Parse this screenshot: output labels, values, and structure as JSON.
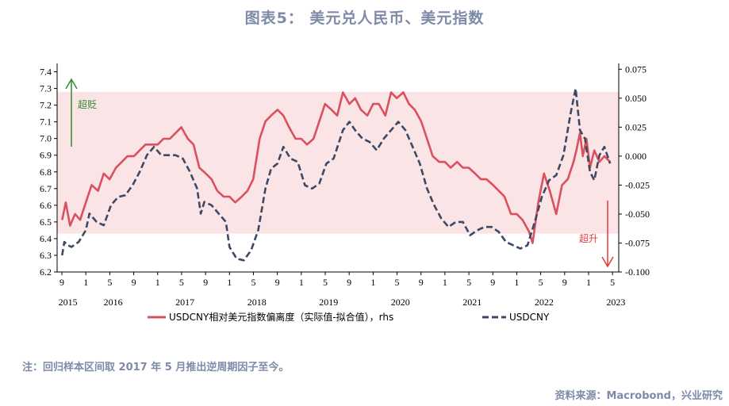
{
  "title": "图表5：  美元兑人民币、美元指数",
  "note": "注：回归样本区间取 2017 年 5 月推出逆周期因子至今。",
  "source": "资料来源：Macrobond，兴业研究",
  "colors": {
    "red": "#d9505f",
    "navy": "#3b4966",
    "band": "#fbe4e6",
    "green": "#2e8b2e",
    "arrow_red": "#e53935"
  },
  "chart_data": {
    "type": "line",
    "annotations": {
      "over_depreciation": "超贬",
      "over_appreciation": "超升"
    },
    "left_axis": {
      "ticks": [
        "6.2",
        "6.3",
        "6.4",
        "6.5",
        "6.6",
        "6.7",
        "6.8",
        "6.9",
        "7.0",
        "7.1",
        "7.2",
        "7.3",
        "7.4"
      ],
      "range": [
        6.2,
        7.45
      ]
    },
    "right_axis": {
      "ticks": [
        "-0.100",
        "-0.075",
        "-0.050",
        "-0.025",
        "0.000",
        "0.025",
        "0.050",
        "0.075"
      ],
      "range": [
        -0.1,
        0.08
      ]
    },
    "band": {
      "y_lo": 6.43,
      "y_hi": 7.28
    },
    "month_ticks": [
      "9",
      "1",
      "5",
      "9",
      "1",
      "5",
      "9",
      "1",
      "5",
      "9",
      "1",
      "5",
      "9",
      "1",
      "5",
      "9",
      "1",
      "5",
      "9",
      "1",
      "5",
      "9",
      "1",
      "5"
    ],
    "years": [
      "2015",
      "2016",
      "2017",
      "2018",
      "2019",
      "2020",
      "2021",
      "2022",
      "2023"
    ],
    "legend": [
      {
        "label": "USDCNY相对美元指数偏离度（实际值-拟合值），rhs",
        "style": "solid",
        "color": "#d9505f"
      },
      {
        "label": "USDCNY",
        "style": "dashed",
        "color": "#3b4966"
      }
    ],
    "series": [
      {
        "name": "USDCNY相对美元指数偏离度（实际值-拟合值），rhs",
        "axis": "right",
        "points": [
          [
            2015.67,
            -0.055
          ],
          [
            2015.72,
            -0.04
          ],
          [
            2015.78,
            -0.06
          ],
          [
            2015.85,
            -0.05
          ],
          [
            2015.92,
            -0.055
          ],
          [
            2016.0,
            -0.04
          ],
          [
            2016.08,
            -0.025
          ],
          [
            2016.17,
            -0.03
          ],
          [
            2016.25,
            -0.015
          ],
          [
            2016.33,
            -0.02
          ],
          [
            2016.42,
            -0.01
          ],
          [
            2016.5,
            -0.005
          ],
          [
            2016.58,
            0.0
          ],
          [
            2016.67,
            0.0
          ],
          [
            2016.75,
            0.005
          ],
          [
            2016.83,
            0.01
          ],
          [
            2016.92,
            0.01
          ],
          [
            2017.0,
            0.01
          ],
          [
            2017.08,
            0.015
          ],
          [
            2017.17,
            0.015
          ],
          [
            2017.25,
            0.02
          ],
          [
            2017.33,
            0.025
          ],
          [
            2017.42,
            0.015
          ],
          [
            2017.5,
            0.01
          ],
          [
            2017.58,
            -0.01
          ],
          [
            2017.67,
            -0.015
          ],
          [
            2017.75,
            -0.02
          ],
          [
            2017.83,
            -0.03
          ],
          [
            2017.92,
            -0.035
          ],
          [
            2018.0,
            -0.035
          ],
          [
            2018.08,
            -0.04
          ],
          [
            2018.17,
            -0.035
          ],
          [
            2018.25,
            -0.03
          ],
          [
            2018.33,
            -0.02
          ],
          [
            2018.42,
            0.015
          ],
          [
            2018.5,
            0.03
          ],
          [
            2018.58,
            0.035
          ],
          [
            2018.67,
            0.04
          ],
          [
            2018.75,
            0.035
          ],
          [
            2018.83,
            0.025
          ],
          [
            2018.92,
            0.015
          ],
          [
            2019.0,
            0.015
          ],
          [
            2019.08,
            0.01
          ],
          [
            2019.17,
            0.015
          ],
          [
            2019.25,
            0.03
          ],
          [
            2019.33,
            0.045
          ],
          [
            2019.42,
            0.04
          ],
          [
            2019.5,
            0.035
          ],
          [
            2019.58,
            0.055
          ],
          [
            2019.67,
            0.045
          ],
          [
            2019.75,
            0.05
          ],
          [
            2019.83,
            0.04
          ],
          [
            2019.92,
            0.035
          ],
          [
            2020.0,
            0.045
          ],
          [
            2020.08,
            0.045
          ],
          [
            2020.17,
            0.035
          ],
          [
            2020.25,
            0.055
          ],
          [
            2020.33,
            0.05
          ],
          [
            2020.42,
            0.055
          ],
          [
            2020.5,
            0.045
          ],
          [
            2020.58,
            0.04
          ],
          [
            2020.67,
            0.03
          ],
          [
            2020.75,
            0.015
          ],
          [
            2020.83,
            0.0
          ],
          [
            2020.92,
            -0.005
          ],
          [
            2021.0,
            -0.005
          ],
          [
            2021.08,
            -0.01
          ],
          [
            2021.17,
            -0.005
          ],
          [
            2021.25,
            -0.01
          ],
          [
            2021.33,
            -0.01
          ],
          [
            2021.42,
            -0.015
          ],
          [
            2021.5,
            -0.02
          ],
          [
            2021.58,
            -0.02
          ],
          [
            2021.67,
            -0.025
          ],
          [
            2021.75,
            -0.03
          ],
          [
            2021.83,
            -0.035
          ],
          [
            2021.92,
            -0.05
          ],
          [
            2022.0,
            -0.05
          ],
          [
            2022.08,
            -0.055
          ],
          [
            2022.17,
            -0.065
          ],
          [
            2022.22,
            -0.075
          ],
          [
            2022.3,
            -0.04
          ],
          [
            2022.38,
            -0.015
          ],
          [
            2022.46,
            -0.03
          ],
          [
            2022.55,
            -0.05
          ],
          [
            2022.63,
            -0.025
          ],
          [
            2022.71,
            -0.02
          ],
          [
            2022.79,
            -0.005
          ],
          [
            2022.83,
            0.005
          ],
          [
            2022.88,
            0.02
          ],
          [
            2022.92,
            0.0
          ],
          [
            2022.97,
            0.015
          ],
          [
            2023.02,
            -0.01
          ],
          [
            2023.08,
            0.005
          ],
          [
            2023.15,
            -0.005
          ],
          [
            2023.22,
            0.0
          ],
          [
            2023.3,
            -0.005
          ]
        ]
      },
      {
        "name": "USDCNY",
        "axis": "left",
        "points": [
          [
            2015.67,
            6.3
          ],
          [
            2015.7,
            6.38
          ],
          [
            2015.75,
            6.36
          ],
          [
            2015.8,
            6.35
          ],
          [
            2015.9,
            6.38
          ],
          [
            2016.0,
            6.45
          ],
          [
            2016.05,
            6.55
          ],
          [
            2016.15,
            6.5
          ],
          [
            2016.25,
            6.48
          ],
          [
            2016.35,
            6.6
          ],
          [
            2016.45,
            6.65
          ],
          [
            2016.55,
            6.66
          ],
          [
            2016.65,
            6.72
          ],
          [
            2016.75,
            6.8
          ],
          [
            2016.85,
            6.9
          ],
          [
            2016.95,
            6.95
          ],
          [
            2017.05,
            6.9
          ],
          [
            2017.15,
            6.9
          ],
          [
            2017.25,
            6.9
          ],
          [
            2017.35,
            6.88
          ],
          [
            2017.45,
            6.8
          ],
          [
            2017.55,
            6.7
          ],
          [
            2017.6,
            6.55
          ],
          [
            2017.65,
            6.62
          ],
          [
            2017.75,
            6.6
          ],
          [
            2017.85,
            6.55
          ],
          [
            2017.95,
            6.5
          ],
          [
            2018.0,
            6.35
          ],
          [
            2018.1,
            6.28
          ],
          [
            2018.2,
            6.27
          ],
          [
            2018.3,
            6.33
          ],
          [
            2018.4,
            6.45
          ],
          [
            2018.5,
            6.7
          ],
          [
            2018.58,
            6.82
          ],
          [
            2018.67,
            6.85
          ],
          [
            2018.75,
            6.95
          ],
          [
            2018.85,
            6.88
          ],
          [
            2018.95,
            6.86
          ],
          [
            2019.05,
            6.72
          ],
          [
            2019.15,
            6.7
          ],
          [
            2019.25,
            6.73
          ],
          [
            2019.35,
            6.85
          ],
          [
            2019.45,
            6.88
          ],
          [
            2019.58,
            7.05
          ],
          [
            2019.67,
            7.1
          ],
          [
            2019.75,
            7.05
          ],
          [
            2019.85,
            7.0
          ],
          [
            2019.95,
            6.98
          ],
          [
            2020.05,
            6.93
          ],
          [
            2020.15,
            7.0
          ],
          [
            2020.25,
            7.05
          ],
          [
            2020.35,
            7.1
          ],
          [
            2020.45,
            7.05
          ],
          [
            2020.55,
            6.95
          ],
          [
            2020.65,
            6.85
          ],
          [
            2020.75,
            6.7
          ],
          [
            2020.85,
            6.6
          ],
          [
            2020.95,
            6.52
          ],
          [
            2021.05,
            6.47
          ],
          [
            2021.15,
            6.5
          ],
          [
            2021.25,
            6.5
          ],
          [
            2021.35,
            6.42
          ],
          [
            2021.45,
            6.45
          ],
          [
            2021.55,
            6.47
          ],
          [
            2021.65,
            6.47
          ],
          [
            2021.75,
            6.44
          ],
          [
            2021.85,
            6.38
          ],
          [
            2021.95,
            6.36
          ],
          [
            2022.05,
            6.34
          ],
          [
            2022.15,
            6.36
          ],
          [
            2022.25,
            6.5
          ],
          [
            2022.35,
            6.65
          ],
          [
            2022.45,
            6.75
          ],
          [
            2022.55,
            6.78
          ],
          [
            2022.65,
            6.9
          ],
          [
            2022.75,
            7.15
          ],
          [
            2022.82,
            7.3
          ],
          [
            2022.88,
            7.05
          ],
          [
            2022.95,
            7.0
          ],
          [
            2023.02,
            6.8
          ],
          [
            2023.08,
            6.75
          ],
          [
            2023.15,
            6.9
          ],
          [
            2023.22,
            6.95
          ],
          [
            2023.3,
            6.85
          ]
        ]
      }
    ]
  }
}
